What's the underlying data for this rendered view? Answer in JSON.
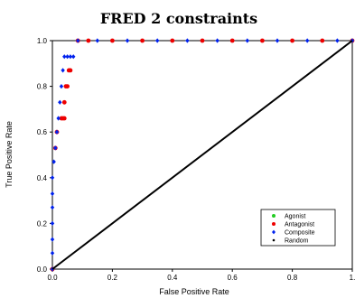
{
  "chart_data": {
    "type": "scatter",
    "title": "FRED 2 constraints",
    "xlabel": "False Positive Rate",
    "ylabel": "True Positive Rate",
    "xlim": [
      0,
      1
    ],
    "ylim": [
      0,
      1
    ],
    "xticks": [
      "0.0",
      "0.2",
      "0.4",
      "0.6",
      "0.8",
      "1."
    ],
    "yticks": [
      "0.0",
      "0.2",
      "0.4",
      "0.6",
      "0.8",
      "1.0"
    ],
    "grid": false,
    "legend": "bottom-right",
    "series": [
      {
        "name": "Agonist",
        "color": "#22cc22",
        "marker": "circle",
        "points": []
      },
      {
        "name": "Antagonist",
        "color": "#ee0000",
        "marker": "circle",
        "points": [
          [
            0.0,
            0.0
          ],
          [
            0.01,
            0.53
          ],
          [
            0.015,
            0.6
          ],
          [
            0.03,
            0.66
          ],
          [
            0.035,
            0.66
          ],
          [
            0.04,
            0.66
          ],
          [
            0.04,
            0.73
          ],
          [
            0.045,
            0.8
          ],
          [
            0.05,
            0.8
          ],
          [
            0.055,
            0.87
          ],
          [
            0.06,
            0.87
          ],
          [
            0.085,
            1.0
          ],
          [
            0.12,
            1.0
          ],
          [
            0.2,
            1.0
          ],
          [
            0.3,
            1.0
          ],
          [
            0.4,
            1.0
          ],
          [
            0.5,
            1.0
          ],
          [
            0.6,
            1.0
          ],
          [
            0.7,
            1.0
          ],
          [
            0.8,
            1.0
          ],
          [
            0.9,
            1.0
          ],
          [
            1.0,
            1.0
          ]
        ]
      },
      {
        "name": "Composite",
        "color": "#0022ee",
        "marker": "diamond",
        "points": [
          [
            0.0,
            0.0
          ],
          [
            0.0,
            0.07
          ],
          [
            0.0,
            0.13
          ],
          [
            0.0,
            0.2
          ],
          [
            0.0,
            0.27
          ],
          [
            0.0,
            0.33
          ],
          [
            0.0,
            0.4
          ],
          [
            0.005,
            0.47
          ],
          [
            0.01,
            0.53
          ],
          [
            0.015,
            0.6
          ],
          [
            0.02,
            0.66
          ],
          [
            0.025,
            0.73
          ],
          [
            0.03,
            0.8
          ],
          [
            0.035,
            0.87
          ],
          [
            0.04,
            0.93
          ],
          [
            0.05,
            0.93
          ],
          [
            0.06,
            0.93
          ],
          [
            0.07,
            0.93
          ],
          [
            0.085,
            1.0
          ],
          [
            0.15,
            1.0
          ],
          [
            0.25,
            1.0
          ],
          [
            0.35,
            1.0
          ],
          [
            0.45,
            1.0
          ],
          [
            0.55,
            1.0
          ],
          [
            0.65,
            1.0
          ],
          [
            0.75,
            1.0
          ],
          [
            0.85,
            1.0
          ],
          [
            0.95,
            1.0
          ],
          [
            1.0,
            1.0
          ]
        ]
      },
      {
        "name": "Random",
        "color": "#000000",
        "marker": "line",
        "points": [
          [
            0,
            0
          ],
          [
            1,
            1
          ]
        ]
      }
    ]
  }
}
